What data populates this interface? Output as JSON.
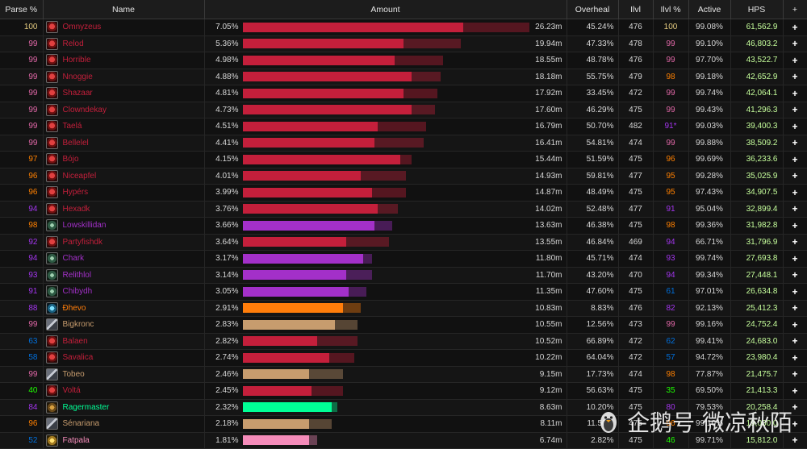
{
  "headers": {
    "parse": "Parse %",
    "name": "Name",
    "amount": "Amount",
    "overheal": "Overheal",
    "ilvl": "Ilvl",
    "ilvl_pct": "Ilvl %",
    "active": "Active",
    "hps": "HPS",
    "plus": "+"
  },
  "watermark": "企鹅号 微凉秋陌",
  "colors": {
    "legendary": "#ff8000",
    "epic": "#a335ee",
    "rare": "#0070dd",
    "uncommon": "#1eff00",
    "artifact": "#e5cc80",
    "common": "#b8b8b8",
    "hps": "#c6ff9c"
  },
  "class_colors": {
    "paladin": "#f58cba",
    "priest": "#ffffff",
    "druid": "#ff7d0a",
    "shaman": "#0070de",
    "monk": "#00ff96",
    "deathknight": "#c41f3b",
    "warrior": "#c79c6e",
    "demonhunter": "#a330c9"
  },
  "rows": [
    {
      "parse": "100",
      "parse_color": "#e5cc80",
      "name": "Omnyzeus",
      "icon": "deathknight-icon",
      "cls": "deathknight",
      "pct": "7.05%",
      "eff": 0.77,
      "total": 1.0,
      "amount": "26.23m",
      "overheal": "45.24%",
      "ilvl": "476",
      "ilvl_pct": "100",
      "ilvl_color": "#e5cc80",
      "active": "99.08%",
      "hps": "61,562.9"
    },
    {
      "parse": "99",
      "parse_color": "#e268a8",
      "name": "Relod",
      "icon": "deathknight-icon",
      "cls": "deathknight",
      "pct": "5.36%",
      "eff": 0.56,
      "total": 0.76,
      "amount": "19.94m",
      "overheal": "47.33%",
      "ilvl": "478",
      "ilvl_pct": "99",
      "ilvl_color": "#e268a8",
      "active": "99.10%",
      "hps": "46,803.2"
    },
    {
      "parse": "99",
      "parse_color": "#e268a8",
      "name": "Horrible",
      "icon": "deathknight-icon",
      "cls": "deathknight",
      "pct": "4.98%",
      "eff": 0.53,
      "total": 0.7,
      "amount": "18.55m",
      "overheal": "48.78%",
      "ilvl": "476",
      "ilvl_pct": "99",
      "ilvl_color": "#e268a8",
      "active": "97.70%",
      "hps": "43,522.7"
    },
    {
      "parse": "99",
      "parse_color": "#e268a8",
      "name": "Nnoggie",
      "icon": "deathknight-icon",
      "cls": "deathknight",
      "pct": "4.88%",
      "eff": 0.59,
      "total": 0.69,
      "amount": "18.18m",
      "overheal": "55.75%",
      "ilvl": "479",
      "ilvl_pct": "98",
      "ilvl_color": "#ff8000",
      "active": "99.18%",
      "hps": "42,652.9"
    },
    {
      "parse": "99",
      "parse_color": "#e268a8",
      "name": "Shazaar",
      "icon": "deathknight-icon",
      "cls": "deathknight",
      "pct": "4.81%",
      "eff": 0.56,
      "total": 0.68,
      "amount": "17.92m",
      "overheal": "33.45%",
      "ilvl": "472",
      "ilvl_pct": "99",
      "ilvl_color": "#e268a8",
      "active": "99.74%",
      "hps": "42,064.1"
    },
    {
      "parse": "99",
      "parse_color": "#e268a8",
      "name": "Clowndekay",
      "icon": "deathknight-icon",
      "cls": "deathknight",
      "pct": "4.73%",
      "eff": 0.59,
      "total": 0.67,
      "amount": "17.60m",
      "overheal": "46.29%",
      "ilvl": "475",
      "ilvl_pct": "99",
      "ilvl_color": "#e268a8",
      "active": "99.43%",
      "hps": "41,296.3"
    },
    {
      "parse": "99",
      "parse_color": "#e268a8",
      "name": "Taelá",
      "icon": "deathknight-icon",
      "cls": "deathknight",
      "pct": "4.51%",
      "eff": 0.47,
      "total": 0.64,
      "amount": "16.79m",
      "overheal": "50.70%",
      "ilvl": "482",
      "ilvl_pct": "91*",
      "ilvl_color": "#a335ee",
      "active": "99.03%",
      "hps": "39,400.3"
    },
    {
      "parse": "99",
      "parse_color": "#e268a8",
      "name": "Bellelel",
      "icon": "deathknight-icon",
      "cls": "deathknight",
      "pct": "4.41%",
      "eff": 0.46,
      "total": 0.63,
      "amount": "16.41m",
      "overheal": "54.81%",
      "ilvl": "474",
      "ilvl_pct": "99",
      "ilvl_color": "#e268a8",
      "active": "99.88%",
      "hps": "38,509.2"
    },
    {
      "parse": "97",
      "parse_color": "#ff8000",
      "name": "Bójo",
      "icon": "deathknight-icon",
      "cls": "deathknight",
      "pct": "4.15%",
      "eff": 0.55,
      "total": 0.59,
      "amount": "15.44m",
      "overheal": "51.59%",
      "ilvl": "475",
      "ilvl_pct": "96",
      "ilvl_color": "#ff8000",
      "active": "99.69%",
      "hps": "36,233.6"
    },
    {
      "parse": "96",
      "parse_color": "#ff8000",
      "name": "Niceapfel",
      "icon": "deathknight-icon",
      "cls": "deathknight",
      "pct": "4.01%",
      "eff": 0.41,
      "total": 0.57,
      "amount": "14.93m",
      "overheal": "59.81%",
      "ilvl": "477",
      "ilvl_pct": "95",
      "ilvl_color": "#ff8000",
      "active": "99.28%",
      "hps": "35,025.9"
    },
    {
      "parse": "96",
      "parse_color": "#ff8000",
      "name": "Hypérs",
      "icon": "deathknight-icon",
      "cls": "deathknight",
      "pct": "3.99%",
      "eff": 0.45,
      "total": 0.57,
      "amount": "14.87m",
      "overheal": "48.49%",
      "ilvl": "475",
      "ilvl_pct": "95",
      "ilvl_color": "#ff8000",
      "active": "97.43%",
      "hps": "34,907.5"
    },
    {
      "parse": "94",
      "parse_color": "#a335ee",
      "name": "Hexadk",
      "icon": "deathknight-icon",
      "cls": "deathknight",
      "pct": "3.76%",
      "eff": 0.47,
      "total": 0.54,
      "amount": "14.02m",
      "overheal": "52.48%",
      "ilvl": "477",
      "ilvl_pct": "91",
      "ilvl_color": "#a335ee",
      "active": "95.04%",
      "hps": "32,899.4"
    },
    {
      "parse": "98",
      "parse_color": "#ff8000",
      "name": "Lowskillidan",
      "icon": "demonhunter-icon",
      "cls": "demonhunter",
      "pct": "3.66%",
      "eff": 0.46,
      "total": 0.52,
      "amount": "13.63m",
      "overheal": "46.38%",
      "ilvl": "475",
      "ilvl_pct": "98",
      "ilvl_color": "#ff8000",
      "active": "99.36%",
      "hps": "31,982.8"
    },
    {
      "parse": "92",
      "parse_color": "#a335ee",
      "name": "Partyfishdk",
      "icon": "deathknight-icon",
      "cls": "deathknight",
      "pct": "3.64%",
      "eff": 0.36,
      "total": 0.51,
      "amount": "13.55m",
      "overheal": "46.84%",
      "ilvl": "469",
      "ilvl_pct": "94",
      "ilvl_color": "#a335ee",
      "active": "66.71%",
      "hps": "31,796.9"
    },
    {
      "parse": "94",
      "parse_color": "#a335ee",
      "name": "Chark",
      "icon": "demonhunter-icon",
      "cls": "demonhunter",
      "pct": "3.17%",
      "eff": 0.42,
      "total": 0.45,
      "amount": "11.80m",
      "overheal": "45.71%",
      "ilvl": "474",
      "ilvl_pct": "93",
      "ilvl_color": "#a335ee",
      "active": "99.74%",
      "hps": "27,693.8"
    },
    {
      "parse": "93",
      "parse_color": "#a335ee",
      "name": "Relithlol",
      "icon": "demonhunter-icon",
      "cls": "demonhunter",
      "pct": "3.14%",
      "eff": 0.36,
      "total": 0.45,
      "amount": "11.70m",
      "overheal": "43.20%",
      "ilvl": "470",
      "ilvl_pct": "94",
      "ilvl_color": "#a335ee",
      "active": "99.34%",
      "hps": "27,448.1"
    },
    {
      "parse": "91",
      "parse_color": "#a335ee",
      "name": "Chibydh",
      "icon": "demonhunter-icon",
      "cls": "demonhunter",
      "pct": "3.05%",
      "eff": 0.37,
      "total": 0.43,
      "amount": "11.35m",
      "overheal": "47.60%",
      "ilvl": "475",
      "ilvl_pct": "61",
      "ilvl_color": "#0070dd",
      "active": "97.01%",
      "hps": "26,634.8"
    },
    {
      "parse": "88",
      "parse_color": "#a335ee",
      "name": "Đhevo",
      "icon": "druid-icon",
      "cls": "druid",
      "pct": "2.91%",
      "eff": 0.35,
      "total": 0.41,
      "amount": "10.83m",
      "overheal": "8.83%",
      "ilvl": "476",
      "ilvl_pct": "82",
      "ilvl_color": "#a335ee",
      "active": "92.13%",
      "hps": "25,412.3"
    },
    {
      "parse": "99",
      "parse_color": "#e268a8",
      "name": "Bigkronc",
      "icon": "warrior-icon",
      "cls": "warrior",
      "pct": "2.83%",
      "eff": 0.32,
      "total": 0.4,
      "amount": "10.55m",
      "overheal": "12.56%",
      "ilvl": "473",
      "ilvl_pct": "99",
      "ilvl_color": "#e268a8",
      "active": "99.16%",
      "hps": "24,752.4"
    },
    {
      "parse": "63",
      "parse_color": "#0070dd",
      "name": "Balaen",
      "icon": "deathknight-icon",
      "cls": "deathknight",
      "pct": "2.82%",
      "eff": 0.26,
      "total": 0.4,
      "amount": "10.52m",
      "overheal": "66.89%",
      "ilvl": "472",
      "ilvl_pct": "62",
      "ilvl_color": "#0070dd",
      "active": "99.41%",
      "hps": "24,683.0"
    },
    {
      "parse": "58",
      "parse_color": "#0070dd",
      "name": "Savalica",
      "icon": "deathknight-icon",
      "cls": "deathknight",
      "pct": "2.74%",
      "eff": 0.3,
      "total": 0.39,
      "amount": "10.22m",
      "overheal": "64.04%",
      "ilvl": "472",
      "ilvl_pct": "57",
      "ilvl_color": "#0070dd",
      "active": "94.72%",
      "hps": "23,980.4"
    },
    {
      "parse": "99",
      "parse_color": "#e268a8",
      "name": "Tobeo",
      "icon": "warrior-icon",
      "cls": "warrior",
      "pct": "2.46%",
      "eff": 0.23,
      "total": 0.35,
      "amount": "9.15m",
      "overheal": "17.73%",
      "ilvl": "474",
      "ilvl_pct": "98",
      "ilvl_color": "#ff8000",
      "active": "77.87%",
      "hps": "21,475.7"
    },
    {
      "parse": "40",
      "parse_color": "#1eff00",
      "name": "Voltá",
      "icon": "deathknight-icon",
      "cls": "deathknight",
      "pct": "2.45%",
      "eff": 0.24,
      "total": 0.35,
      "amount": "9.12m",
      "overheal": "56.63%",
      "ilvl": "475",
      "ilvl_pct": "35",
      "ilvl_color": "#1eff00",
      "active": "69.50%",
      "hps": "21,413.3"
    },
    {
      "parse": "84",
      "parse_color": "#a335ee",
      "name": "Ragermaster",
      "icon": "monk-icon",
      "cls": "monk",
      "pct": "2.32%",
      "eff": 0.31,
      "total": 0.33,
      "amount": "8.63m",
      "overheal": "10.20%",
      "ilvl": "475",
      "ilvl_pct": "80",
      "ilvl_color": "#a335ee",
      "active": "79.53%",
      "hps": "20,258.4"
    },
    {
      "parse": "96",
      "parse_color": "#ff8000",
      "name": "Sénariana",
      "icon": "warrior-icon",
      "cls": "warrior",
      "pct": "2.18%",
      "eff": 0.23,
      "total": 0.31,
      "amount": "8.11m",
      "overheal": "11.50%",
      "ilvl": "475",
      "ilvl_pct": "96",
      "ilvl_color": "#ff8000",
      "active": "99.10%",
      "hps": "19,030.0"
    },
    {
      "parse": "52",
      "parse_color": "#0070dd",
      "name": "Fatpala",
      "icon": "paladin-icon",
      "cls": "paladin",
      "pct": "1.81%",
      "eff": 0.23,
      "total": 0.26,
      "amount": "6.74m",
      "overheal": "2.82%",
      "ilvl": "475",
      "ilvl_pct": "46",
      "ilvl_color": "#1eff00",
      "active": "99.71%",
      "hps": "15,812.0"
    }
  ]
}
